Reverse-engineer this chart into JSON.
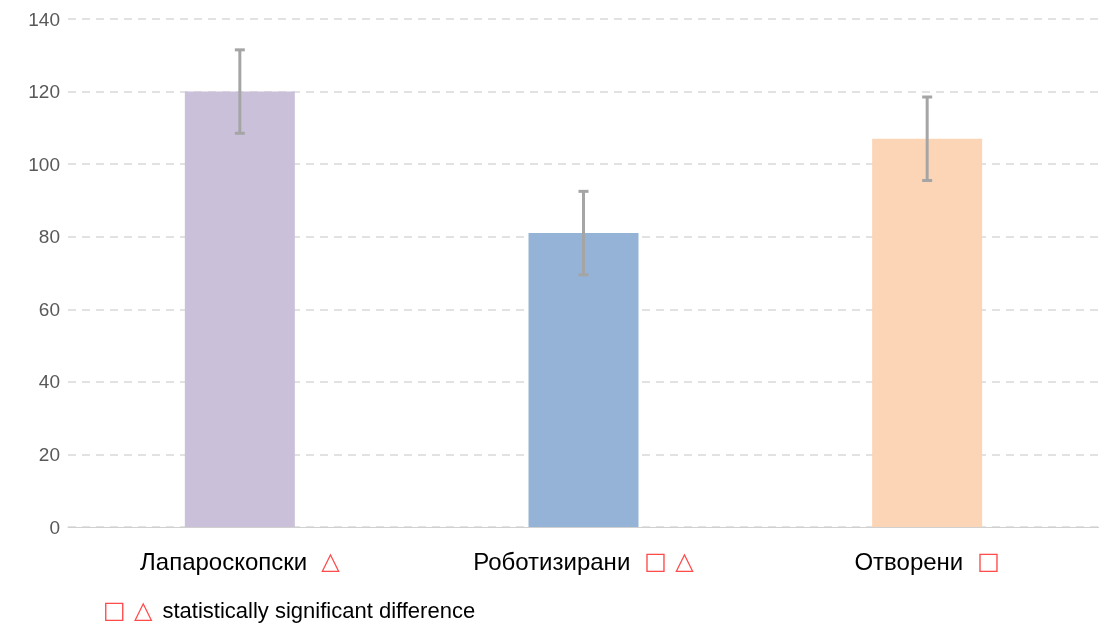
{
  "chart_data": {
    "type": "bar",
    "categories": [
      "Лапароскопски △",
      "Роботизирани □ △",
      "Отворени □"
    ],
    "values": [
      120,
      81,
      107
    ],
    "colors": [
      "#cbc0da",
      "#95b3d7",
      "#fbd5b5"
    ],
    "errors": [
      11.5,
      11.5,
      11.5
    ],
    "ylim": [
      0,
      140
    ],
    "yticks": [
      0,
      20,
      40,
      60,
      80,
      100,
      120,
      140
    ],
    "grid": "y",
    "annotations": [
      "□ △   statistically significant difference"
    ]
  }
}
